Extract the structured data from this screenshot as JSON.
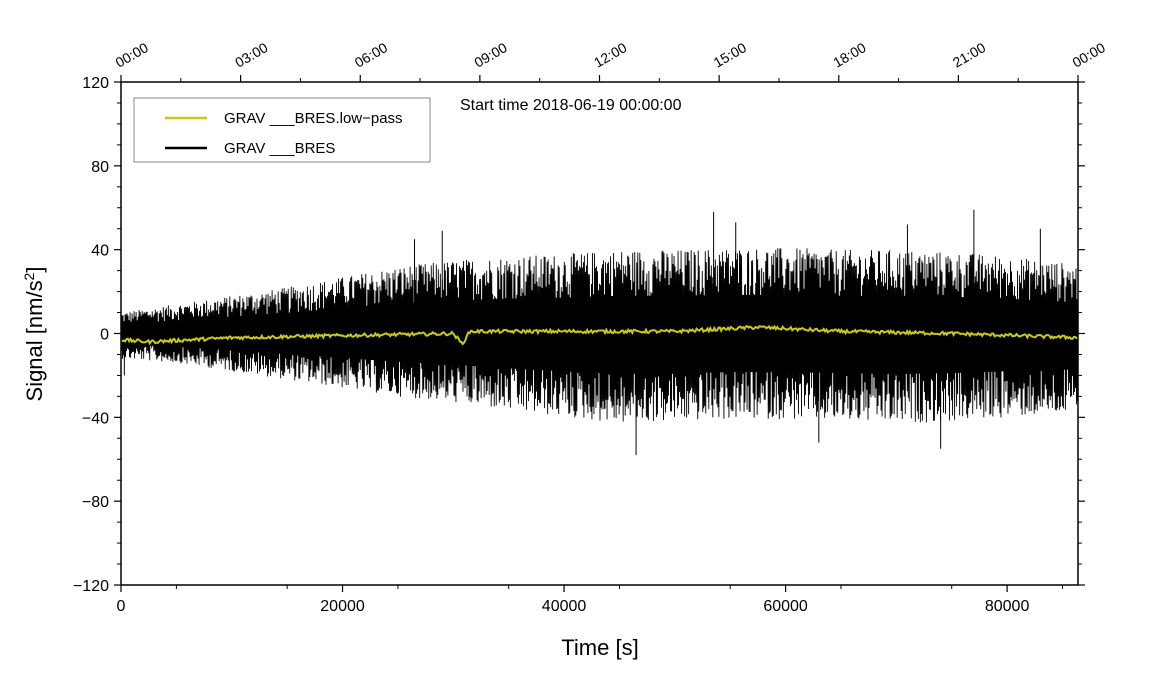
{
  "chart_data": {
    "type": "line",
    "annotation": "Start time 2018-06-19 00:00:00",
    "xlabel": "Time [s]",
    "ylabel_main": "Signal [nm/s",
    "ylabel_sup": "2",
    "ylabel_end": "]",
    "xlim": [
      0,
      86400
    ],
    "ylim": [
      -120,
      120
    ],
    "x_ticks": [
      0,
      20000,
      40000,
      60000,
      80000
    ],
    "x_tick_labels": [
      "0",
      "20000",
      "40000",
      "60000",
      "80000"
    ],
    "y_ticks": [
      120,
      80,
      40,
      0,
      -40,
      -80,
      -120
    ],
    "y_tick_labels": [
      "120",
      "80",
      "40",
      "0",
      "−40",
      "−80",
      "−120"
    ],
    "top_axis": {
      "ticks": [
        0,
        10800,
        21600,
        32400,
        43200,
        54000,
        64800,
        75600,
        86400
      ],
      "labels": [
        "00:00",
        "03:00",
        "06:00",
        "09:00",
        "12:00",
        "15:00",
        "18:00",
        "21:00",
        "00:00"
      ]
    },
    "legend": {
      "placement": "top-left",
      "entries": [
        {
          "label": "GRAV ___BRES.low−pass",
          "color": "#c8c81e"
        },
        {
          "label": "GRAV ___BRES",
          "color": "#000000"
        }
      ]
    },
    "series": [
      {
        "name": "GRAV ___BRES",
        "color": "#000000",
        "envelope": {
          "x": [
            0,
            5000,
            10000,
            15000,
            20000,
            25000,
            30000,
            35000,
            40000,
            45000,
            50000,
            55000,
            60000,
            65000,
            70000,
            75000,
            80000,
            86400
          ],
          "upper": [
            10,
            14,
            18,
            22,
            27,
            32,
            35,
            37,
            38,
            40,
            40,
            41,
            41,
            40,
            40,
            39,
            37,
            33
          ],
          "lower": [
            -12,
            -14,
            -18,
            -22,
            -26,
            -30,
            -33,
            -37,
            -40,
            -43,
            -42,
            -41,
            -41,
            -42,
            -43,
            -42,
            -40,
            -38
          ]
        },
        "peaks": [
          {
            "x": 26500,
            "y": 45
          },
          {
            "x": 29000,
            "y": 49
          },
          {
            "x": 53500,
            "y": 58
          },
          {
            "x": 55500,
            "y": 53
          },
          {
            "x": 71000,
            "y": 52
          },
          {
            "x": 77000,
            "y": 59
          },
          {
            "x": 83000,
            "y": 50
          },
          {
            "x": 46500,
            "y": -58
          },
          {
            "x": 63000,
            "y": -52
          },
          {
            "x": 74000,
            "y": -55
          },
          {
            "x": 300,
            "y": -20
          }
        ]
      },
      {
        "name": "GRAV ___BRES.low-pass",
        "color": "#c8c81e",
        "x": [
          0,
          2500,
          10000,
          20000,
          30000,
          30800,
          31500,
          40000,
          50000,
          57500,
          65000,
          75000,
          86400
        ],
        "y": [
          -3,
          -4,
          -2,
          -1,
          0,
          -5,
          1,
          1,
          1,
          3,
          1,
          0,
          -2
        ]
      }
    ]
  }
}
